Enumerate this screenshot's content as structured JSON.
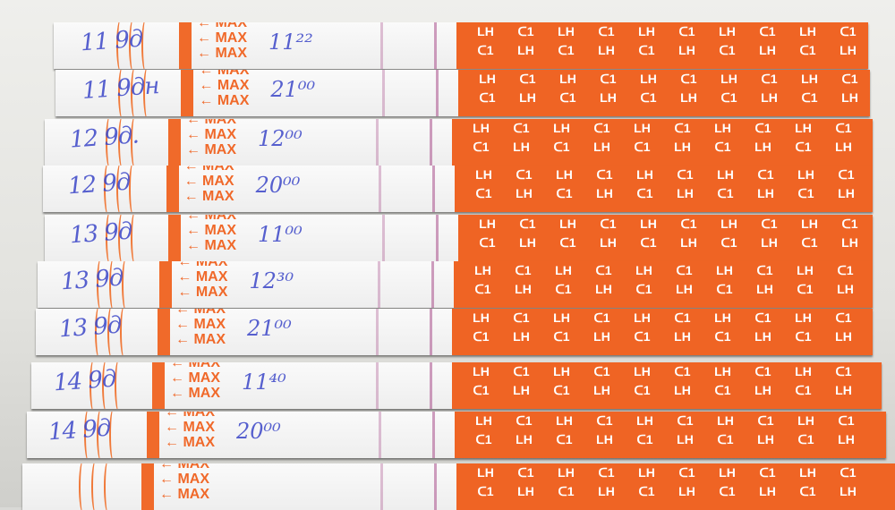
{
  "strip_text": {
    "max_label": "MAX",
    "arrow": "←",
    "brand": "LH",
    "logo_glyph": "ᑕ1"
  },
  "colors": {
    "orange": "#ef6424",
    "ink": "#3b46c8",
    "test_line": "#aa508c"
  },
  "strips": [
    {
      "date": "11 9д",
      "time": "11²²"
    },
    {
      "date": "11 9дн",
      "time": "21⁰⁰"
    },
    {
      "date": "12 9д.",
      "time": "12⁰⁰"
    },
    {
      "date": "12 9д",
      "time": "20⁰⁰"
    },
    {
      "date": "13 9д",
      "time": "11⁰⁰"
    },
    {
      "date": "13 9д",
      "time": "12³⁰"
    },
    {
      "date": "13 9д",
      "time": "21⁰⁰"
    },
    {
      "date": "14 9д",
      "time": "11⁴⁰"
    },
    {
      "date": "14 9д",
      "time": "20⁰⁰"
    },
    {
      "date": "",
      "time": ""
    }
  ]
}
